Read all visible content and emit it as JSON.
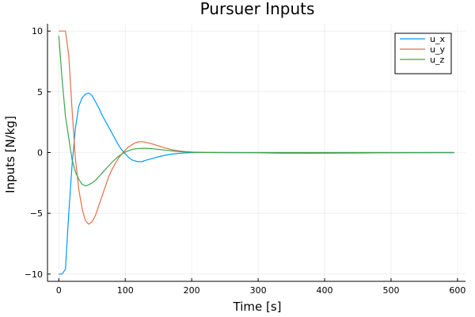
{
  "chart_data": {
    "type": "line",
    "title": "Pursuer Inputs",
    "xlabel": "Time [s]",
    "ylabel": "Inputs [N/kg]",
    "xlim": [
      -17,
      612
    ],
    "ylim": [
      -10.6,
      10.6
    ],
    "xticks": [
      0,
      100,
      200,
      300,
      400,
      500,
      600
    ],
    "yticks": [
      -10,
      -5,
      0,
      5,
      10
    ],
    "yticklabels": [
      "−10",
      "−5",
      "0",
      "5",
      "10"
    ],
    "grid": true,
    "legend_position": "top-right",
    "series": [
      {
        "name": "u_x",
        "color": "#009AF9",
        "points": [
          [
            0,
            -10
          ],
          [
            5,
            -10
          ],
          [
            10,
            -9.6
          ],
          [
            15,
            -5
          ],
          [
            20,
            -1
          ],
          [
            25,
            2
          ],
          [
            30,
            3.8
          ],
          [
            35,
            4.5
          ],
          [
            40,
            4.8
          ],
          [
            45,
            4.9
          ],
          [
            50,
            4.7
          ],
          [
            55,
            4.2
          ],
          [
            60,
            3.7
          ],
          [
            65,
            3.1
          ],
          [
            70,
            2.6
          ],
          [
            75,
            2.1
          ],
          [
            80,
            1.6
          ],
          [
            85,
            1.1
          ],
          [
            90,
            0.6
          ],
          [
            95,
            0.2
          ],
          [
            100,
            -0.1
          ],
          [
            105,
            -0.4
          ],
          [
            110,
            -0.6
          ],
          [
            115,
            -0.7
          ],
          [
            120,
            -0.75
          ],
          [
            125,
            -0.75
          ],
          [
            130,
            -0.65
          ],
          [
            140,
            -0.5
          ],
          [
            150,
            -0.35
          ],
          [
            160,
            -0.22
          ],
          [
            170,
            -0.13
          ],
          [
            180,
            -0.07
          ],
          [
            190,
            -0.03
          ],
          [
            200,
            -0.01
          ],
          [
            220,
            0.0
          ],
          [
            250,
            0.0
          ],
          [
            300,
            0.0
          ],
          [
            325,
            0.0
          ],
          [
            350,
            0.0
          ],
          [
            400,
            0.0
          ],
          [
            450,
            0.0
          ],
          [
            500,
            0.0
          ],
          [
            550,
            0.0
          ],
          [
            595,
            0.0
          ]
        ]
      },
      {
        "name": "u_y",
        "color": "#E26F46",
        "points": [
          [
            0,
            10
          ],
          [
            5,
            10
          ],
          [
            10,
            10
          ],
          [
            15,
            8
          ],
          [
            20,
            3.5
          ],
          [
            25,
            -0.5
          ],
          [
            30,
            -3
          ],
          [
            35,
            -4.6
          ],
          [
            40,
            -5.6
          ],
          [
            45,
            -5.9
          ],
          [
            50,
            -5.7
          ],
          [
            55,
            -5.2
          ],
          [
            60,
            -4.4
          ],
          [
            65,
            -3.6
          ],
          [
            70,
            -2.8
          ],
          [
            75,
            -2.0
          ],
          [
            80,
            -1.4
          ],
          [
            85,
            -0.9
          ],
          [
            90,
            -0.45
          ],
          [
            95,
            -0.1
          ],
          [
            100,
            0.2
          ],
          [
            105,
            0.45
          ],
          [
            110,
            0.65
          ],
          [
            115,
            0.8
          ],
          [
            120,
            0.88
          ],
          [
            125,
            0.9
          ],
          [
            130,
            0.85
          ],
          [
            140,
            0.72
          ],
          [
            150,
            0.55
          ],
          [
            160,
            0.38
          ],
          [
            170,
            0.24
          ],
          [
            180,
            0.14
          ],
          [
            190,
            0.08
          ],
          [
            200,
            0.04
          ],
          [
            220,
            0.01
          ],
          [
            250,
            0.0
          ],
          [
            300,
            -0.02
          ],
          [
            325,
            -0.05
          ],
          [
            350,
            -0.07
          ],
          [
            400,
            -0.06
          ],
          [
            450,
            -0.04
          ],
          [
            500,
            -0.02
          ],
          [
            550,
            -0.01
          ],
          [
            595,
            0.0
          ]
        ]
      },
      {
        "name": "u_z",
        "color": "#3DA44D",
        "points": [
          [
            0,
            9.6
          ],
          [
            5,
            6
          ],
          [
            10,
            3
          ],
          [
            15,
            1.2
          ],
          [
            20,
            -0.6
          ],
          [
            25,
            -1.6
          ],
          [
            30,
            -2.2
          ],
          [
            35,
            -2.6
          ],
          [
            40,
            -2.75
          ],
          [
            45,
            -2.65
          ],
          [
            50,
            -2.5
          ],
          [
            55,
            -2.3
          ],
          [
            60,
            -2.0
          ],
          [
            65,
            -1.7
          ],
          [
            70,
            -1.4
          ],
          [
            75,
            -1.1
          ],
          [
            80,
            -0.8
          ],
          [
            85,
            -0.55
          ],
          [
            90,
            -0.3
          ],
          [
            95,
            -0.12
          ],
          [
            100,
            0.05
          ],
          [
            105,
            0.15
          ],
          [
            110,
            0.25
          ],
          [
            115,
            0.3
          ],
          [
            120,
            0.33
          ],
          [
            125,
            0.35
          ],
          [
            130,
            0.35
          ],
          [
            140,
            0.32
          ],
          [
            150,
            0.26
          ],
          [
            160,
            0.2
          ],
          [
            170,
            0.14
          ],
          [
            180,
            0.09
          ],
          [
            190,
            0.05
          ],
          [
            200,
            0.03
          ],
          [
            220,
            0.01
          ],
          [
            250,
            0.0
          ],
          [
            300,
            0.0
          ],
          [
            350,
            0.0
          ],
          [
            400,
            0.0
          ],
          [
            450,
            0.0
          ],
          [
            500,
            0.0
          ],
          [
            550,
            0.0
          ],
          [
            595,
            0.0
          ]
        ]
      }
    ]
  }
}
